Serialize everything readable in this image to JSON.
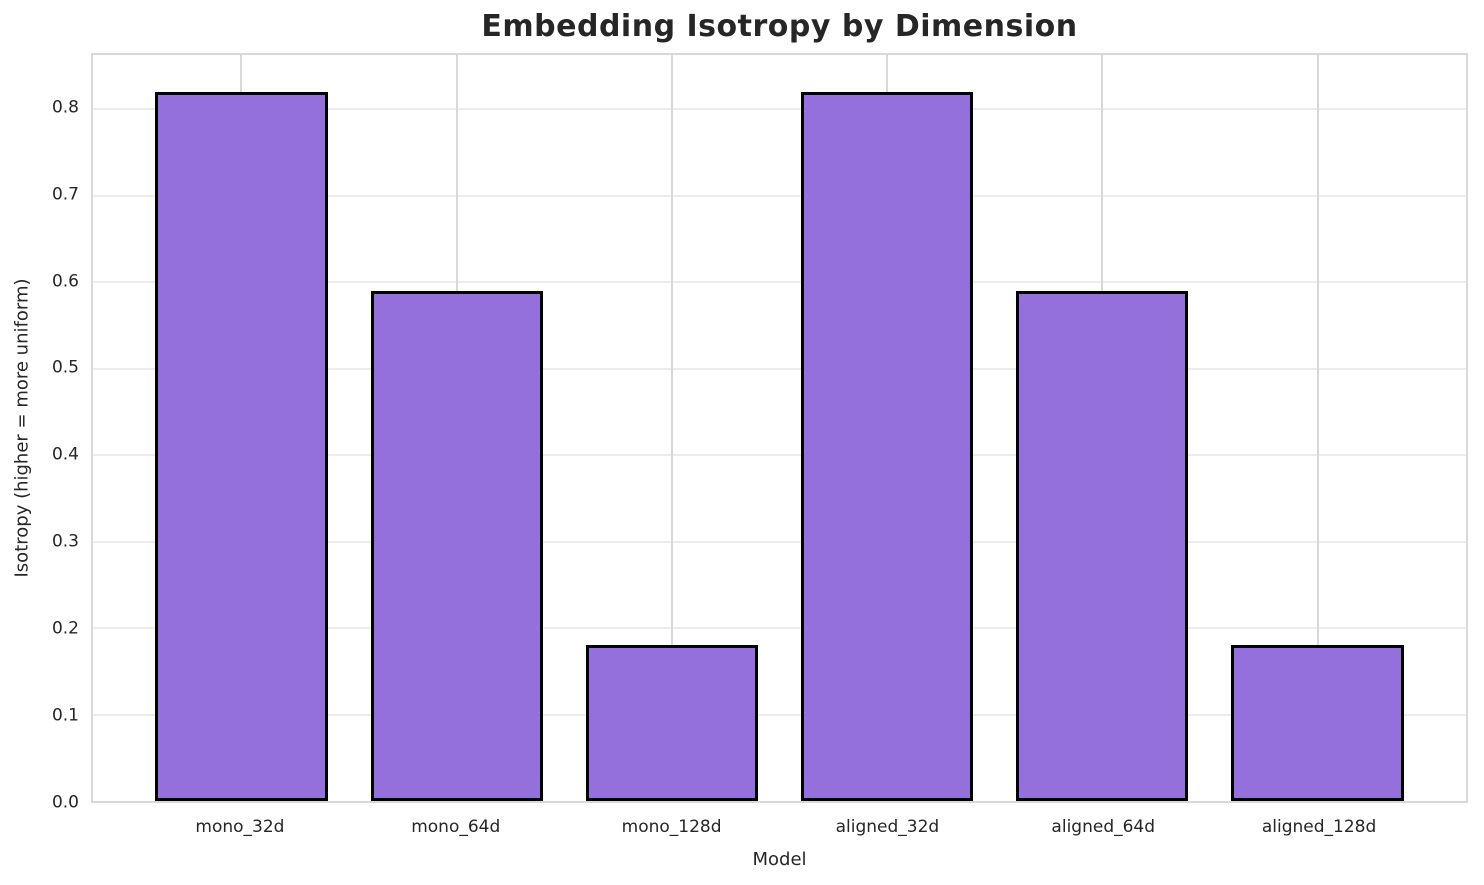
{
  "chart_data": {
    "type": "bar",
    "title": "Embedding Isotropy by Dimension",
    "xlabel": "Model",
    "ylabel": "Isotropy (higher = more uniform)",
    "categories": [
      "mono_32d",
      "mono_64d",
      "mono_128d",
      "aligned_32d",
      "aligned_64d",
      "aligned_128d"
    ],
    "values": [
      0.82,
      0.59,
      0.18,
      0.82,
      0.59,
      0.18
    ],
    "ytick_labels": [
      "0.0",
      "0.1",
      "0.2",
      "0.3",
      "0.4",
      "0.5",
      "0.6",
      "0.7",
      "0.8"
    ],
    "ylim": [
      0,
      0.863
    ],
    "xlim": [
      -0.69,
      5.69
    ],
    "bar_width": 0.8,
    "bar_color": "#9370DB",
    "bar_edge_color": "#000000",
    "grid": true,
    "legend": "none",
    "background_color": "#ffffff"
  }
}
